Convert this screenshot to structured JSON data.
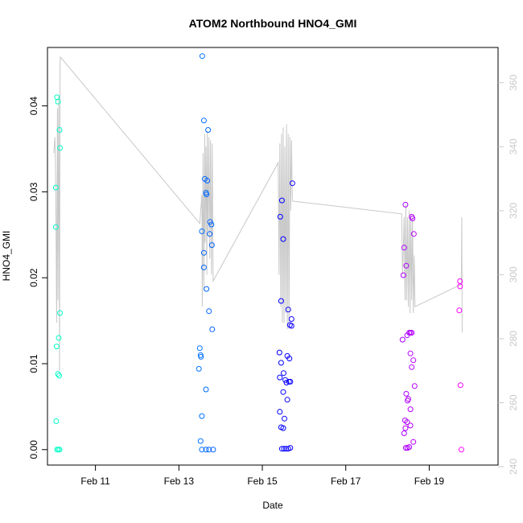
{
  "chart_data": {
    "type": "scatter",
    "title": "ATOM2 Northbound HNO4_GMI",
    "xlabel": "Date",
    "ylabel": "HNO4_GMI",
    "x_ticks": [
      "Feb 11",
      "Feb 13",
      "Feb 15",
      "Feb 17",
      "Feb 19"
    ],
    "x_tick_days": [
      11,
      13,
      15,
      17,
      19
    ],
    "xlim": [
      9.85,
      20.65
    ],
    "y_ticks": [
      "0.00",
      "0.01",
      "0.02",
      "0.03",
      "0.04"
    ],
    "y_tick_values": [
      0,
      0.01,
      0.02,
      0.03,
      0.04
    ],
    "ylim": [
      -0.0018,
      0.0468
    ],
    "y2_ticks": [
      "240",
      "260",
      "280",
      "300",
      "320",
      "340",
      "360"
    ],
    "y2_tick_values": [
      240,
      260,
      280,
      300,
      320,
      340,
      360
    ],
    "y2lim": [
      240.5,
      371
    ],
    "colors": {
      "line": "#c8c8c8",
      "frame": "#000000",
      "right_axis": "#c8c8c8"
    },
    "points": [
      [
        10.05,
        0.0305
      ],
      [
        10.05,
        0.0259
      ],
      [
        10.07,
        0.012
      ],
      [
        10.08,
        0.041
      ],
      [
        10.1,
        0.0405
      ],
      [
        10.1,
        0.0088
      ],
      [
        10.12,
        0.013
      ],
      [
        10.14,
        0.0372
      ],
      [
        10.15,
        0.0351
      ],
      [
        10.15,
        0.0159
      ],
      [
        10.13,
        0.0086
      ],
      [
        10.06,
        0.0033
      ],
      [
        10.08,
        0.0
      ],
      [
        10.11,
        0.0
      ],
      [
        10.14,
        0.0
      ],
      [
        13.56,
        0.0458
      ],
      [
        13.6,
        0.0383
      ],
      [
        13.7,
        0.0372
      ],
      [
        13.62,
        0.0315
      ],
      [
        13.68,
        0.0313
      ],
      [
        13.65,
        0.0299
      ],
      [
        13.66,
        0.0297
      ],
      [
        13.75,
        0.0265
      ],
      [
        13.78,
        0.0262
      ],
      [
        13.55,
        0.0254
      ],
      [
        13.74,
        0.0251
      ],
      [
        13.79,
        0.0238
      ],
      [
        13.6,
        0.0229
      ],
      [
        13.6,
        0.0212
      ],
      [
        13.66,
        0.0187
      ],
      [
        13.72,
        0.0161
      ],
      [
        13.8,
        0.014
      ],
      [
        13.5,
        0.0118
      ],
      [
        13.52,
        0.011
      ],
      [
        13.53,
        0.0108
      ],
      [
        13.48,
        0.0094
      ],
      [
        13.65,
        0.007
      ],
      [
        13.55,
        0.0039
      ],
      [
        13.52,
        0.001
      ],
      [
        13.55,
        0.0
      ],
      [
        13.65,
        0.0
      ],
      [
        13.72,
        0.0
      ],
      [
        13.82,
        0.0
      ],
      [
        15.47,
        0.029
      ],
      [
        15.43,
        0.0271
      ],
      [
        15.5,
        0.0245
      ],
      [
        15.72,
        0.031
      ],
      [
        15.45,
        0.0173
      ],
      [
        15.62,
        0.0163
      ],
      [
        15.7,
        0.0152
      ],
      [
        15.66,
        0.0145
      ],
      [
        15.7,
        0.0144
      ],
      [
        15.41,
        0.0113
      ],
      [
        15.6,
        0.0109
      ],
      [
        15.65,
        0.0106
      ],
      [
        15.45,
        0.0101
      ],
      [
        15.51,
        0.0089
      ],
      [
        15.42,
        0.0084
      ],
      [
        15.55,
        0.0081
      ],
      [
        15.58,
        0.0078
      ],
      [
        15.64,
        0.0079
      ],
      [
        15.67,
        0.0079
      ],
      [
        15.5,
        0.0067
      ],
      [
        15.6,
        0.0058
      ],
      [
        15.42,
        0.0044
      ],
      [
        15.53,
        0.0036
      ],
      [
        15.45,
        0.0026
      ],
      [
        15.5,
        0.0025
      ],
      [
        15.47,
        0.0001
      ],
      [
        15.52,
        0.0001
      ],
      [
        15.57,
        0.0001
      ],
      [
        15.62,
        0.0001
      ],
      [
        15.67,
        0.0002
      ],
      [
        18.43,
        0.0285
      ],
      [
        18.4,
        0.0235
      ],
      [
        18.38,
        0.0203
      ],
      [
        18.45,
        0.0214
      ],
      [
        18.52,
        0.0136
      ],
      [
        18.55,
        0.0136
      ],
      [
        18.58,
        0.0136
      ],
      [
        18.47,
        0.0133
      ],
      [
        18.36,
        0.0128
      ],
      [
        18.55,
        0.0112
      ],
      [
        18.62,
        0.0104
      ],
      [
        18.58,
        0.0096
      ],
      [
        18.45,
        0.0065
      ],
      [
        18.48,
        0.0057
      ],
      [
        18.5,
        0.0059
      ],
      [
        18.42,
        0.0034
      ],
      [
        18.47,
        0.0032
      ],
      [
        18.55,
        0.0028
      ],
      [
        18.4,
        0.0019
      ],
      [
        18.43,
        0.0025
      ],
      [
        18.62,
        0.0009
      ],
      [
        18.65,
        0.0074
      ],
      [
        18.58,
        0.0271
      ],
      [
        18.6,
        0.0269
      ],
      [
        18.63,
        0.0251
      ],
      [
        18.44,
        0.0002
      ],
      [
        18.48,
        0.0002
      ],
      [
        18.52,
        0.0003
      ],
      [
        18.55,
        0.0047
      ],
      [
        19.74,
        0.0196
      ],
      [
        19.74,
        0.019
      ],
      [
        19.72,
        0.0162
      ],
      [
        19.75,
        0.0075
      ],
      [
        19.77,
        0.0
      ]
    ],
    "line": [
      [
        10.0,
        338
      ],
      [
        10.03,
        343
      ],
      [
        10.05,
        324
      ],
      [
        10.07,
        285
      ],
      [
        10.09,
        352
      ],
      [
        10.1,
        292
      ],
      [
        10.12,
        356
      ],
      [
        10.14,
        270
      ],
      [
        10.15,
        366
      ],
      [
        10.16,
        368
      ],
      [
        13.5,
        316
      ],
      [
        13.55,
        325
      ],
      [
        13.56,
        290
      ],
      [
        13.58,
        338
      ],
      [
        13.6,
        295
      ],
      [
        13.62,
        344
      ],
      [
        13.63,
        310
      ],
      [
        13.65,
        340
      ],
      [
        13.67,
        300
      ],
      [
        13.68,
        345
      ],
      [
        13.7,
        312
      ],
      [
        13.72,
        343
      ],
      [
        13.74,
        305
      ],
      [
        13.76,
        342
      ],
      [
        13.78,
        300
      ],
      [
        13.8,
        341
      ],
      [
        13.82,
        298
      ],
      [
        15.38,
        335
      ],
      [
        15.4,
        300
      ],
      [
        15.42,
        341
      ],
      [
        15.44,
        290
      ],
      [
        15.46,
        344
      ],
      [
        15.48,
        285
      ],
      [
        15.5,
        346
      ],
      [
        15.52,
        285
      ],
      [
        15.54,
        340
      ],
      [
        15.56,
        288
      ],
      [
        15.58,
        347
      ],
      [
        15.6,
        283
      ],
      [
        15.62,
        344
      ],
      [
        15.64,
        283
      ],
      [
        15.66,
        343
      ],
      [
        15.68,
        320
      ],
      [
        15.7,
        342
      ],
      [
        15.72,
        323
      ],
      [
        18.34,
        319
      ],
      [
        18.36,
        300
      ],
      [
        18.38,
        308
      ],
      [
        18.4,
        318
      ],
      [
        18.42,
        292
      ],
      [
        18.44,
        322
      ],
      [
        18.46,
        292
      ],
      [
        18.48,
        318
      ],
      [
        18.5,
        290
      ],
      [
        18.52,
        320
      ],
      [
        18.54,
        288
      ],
      [
        18.56,
        319
      ],
      [
        18.58,
        292
      ],
      [
        18.6,
        318
      ],
      [
        18.62,
        288
      ],
      [
        18.64,
        306
      ],
      [
        18.66,
        290
      ],
      [
        19.77,
        297
      ],
      [
        19.78,
        318
      ],
      [
        19.79,
        282
      ]
    ]
  }
}
